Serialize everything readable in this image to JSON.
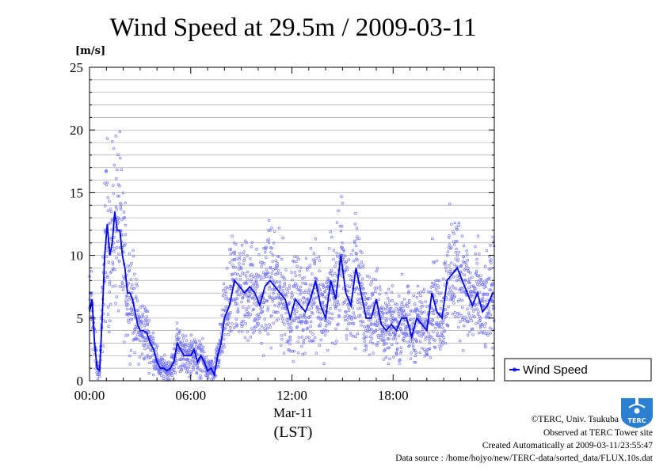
{
  "colors": {
    "line": "#0000e6",
    "dots": "#7777ff",
    "grid": "#aaaaaa"
  },
  "chart_data": {
    "type": "line",
    "title": "Wind Speed at 29.5m / 2009-03-11",
    "ylabel": "[m/s]",
    "xlabel_date": "Mar-11",
    "xlabel_zone": "(LST)",
    "ylim": [
      0,
      25
    ],
    "xlim_hours": [
      0,
      24
    ],
    "yticks": [
      "0",
      "5",
      "10",
      "15",
      "20",
      "25"
    ],
    "xticks": [
      {
        "hour": 0,
        "label": "00:00"
      },
      {
        "hour": 6,
        "label": "06:00"
      },
      {
        "hour": 12,
        "label": "12:00"
      },
      {
        "hour": 18,
        "label": "18:00"
      }
    ],
    "grid": true,
    "legend": {
      "position": "right",
      "label": "Wind Speed"
    },
    "series": [
      {
        "name": "Wind Speed",
        "x_hours": [
          0.0,
          0.15,
          0.3,
          0.45,
          0.6,
          0.75,
          0.9,
          1.05,
          1.2,
          1.35,
          1.5,
          1.65,
          1.8,
          1.95,
          2.1,
          2.25,
          2.4,
          2.55,
          2.7,
          2.85,
          3.0,
          3.2,
          3.4,
          3.6,
          3.8,
          4.0,
          4.2,
          4.4,
          4.6,
          4.8,
          5.0,
          5.2,
          5.4,
          5.6,
          5.8,
          6.0,
          6.2,
          6.4,
          6.6,
          6.8,
          7.0,
          7.2,
          7.4,
          7.6,
          7.8,
          8.0,
          8.3,
          8.6,
          8.9,
          9.2,
          9.5,
          9.8,
          10.1,
          10.4,
          10.7,
          11.0,
          11.3,
          11.6,
          11.9,
          12.2,
          12.5,
          12.8,
          13.1,
          13.4,
          13.7,
          14.0,
          14.3,
          14.6,
          14.9,
          15.2,
          15.5,
          15.8,
          16.1,
          16.4,
          16.7,
          17.0,
          17.3,
          17.6,
          17.9,
          18.2,
          18.5,
          18.8,
          19.1,
          19.4,
          19.7,
          20.0,
          20.3,
          20.6,
          20.9,
          21.2,
          21.5,
          21.8,
          22.1,
          22.4,
          22.7,
          23.0,
          23.3,
          23.6,
          23.9
        ],
        "values": [
          5.5,
          6.5,
          3,
          1,
          0.8,
          5,
          10,
          12.5,
          10,
          11,
          13.5,
          12,
          12,
          10,
          9,
          7,
          7,
          6.5,
          5.5,
          4.5,
          4,
          4,
          3.8,
          3,
          2.5,
          1.5,
          1,
          1,
          0.8,
          1,
          1.5,
          3,
          2.5,
          2,
          2,
          2,
          2.5,
          1.5,
          2,
          1.5,
          0.8,
          1,
          0.5,
          2,
          3,
          5,
          6,
          8,
          7.5,
          7,
          7.5,
          7,
          6,
          7.5,
          8,
          7.5,
          7,
          6.5,
          5,
          6.5,
          6,
          5.5,
          6.5,
          8,
          6,
          5,
          8,
          6.5,
          10,
          7,
          6,
          9,
          7,
          5,
          5,
          6.5,
          4.5,
          4,
          4.5,
          4,
          5,
          5,
          3.5,
          5,
          4.5,
          4,
          7,
          5.5,
          5,
          8,
          8.5,
          9,
          8,
          7,
          6,
          7,
          5.5,
          6,
          7
        ]
      }
    ]
  },
  "credits": {
    "copyright": "©TERC, Univ. Tsukuba",
    "observed": "Observed at TERC Tower site",
    "created": "Created Automatically at 2009-03-11/23:55:47",
    "source": "Data source : /home/hojyo/new/TERC-data/sorted_data/FLUX.10s.dat",
    "logo_text": "TERC"
  }
}
